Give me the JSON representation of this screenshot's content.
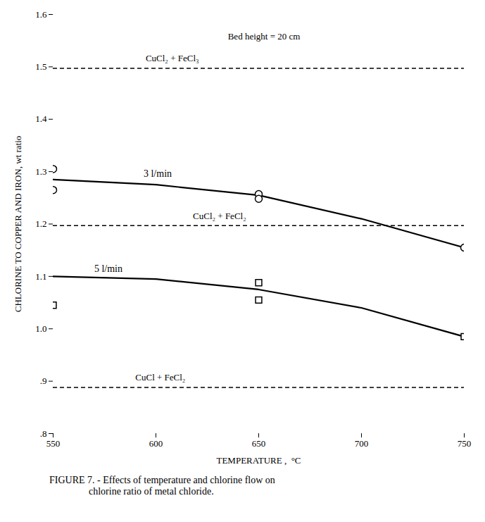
{
  "chart_data": {
    "type": "line",
    "xlabel": "TEMPERATURE ,  °C",
    "ylabel": "CHLORINE TO COPPER AND IRON, wt ratio",
    "xlim": [
      550,
      750
    ],
    "ylim": [
      0.8,
      1.6
    ],
    "xticks": [
      550,
      600,
      650,
      700,
      750
    ],
    "yticks": [
      {
        "value": 0.8,
        "label": ".8"
      },
      {
        "value": 0.9,
        "label": ".9"
      },
      {
        "value": 1.0,
        "label": "1.0"
      },
      1.1,
      1.2,
      1.3,
      1.4,
      1.5,
      1.6
    ],
    "series": [
      {
        "name": "3 l/min",
        "type": "line",
        "color": "black",
        "x": [
          550,
          600,
          650,
          700,
          750
        ],
        "values": [
          1.285,
          1.275,
          1.255,
          1.21,
          1.155
        ],
        "label_x": 594,
        "label_y": 1.296
      },
      {
        "name": "5 l/min",
        "type": "line",
        "color": "black",
        "x": [
          550,
          600,
          650,
          700,
          750
        ],
        "values": [
          1.1,
          1.095,
          1.075,
          1.04,
          0.985
        ],
        "label_x": 570,
        "label_y": 1.115
      },
      {
        "type": "scatter",
        "marker": "circle",
        "color": "black",
        "x": [
          550,
          550,
          650,
          650,
          750
        ],
        "values": [
          1.305,
          1.265,
          1.257,
          1.248,
          1.155
        ]
      },
      {
        "type": "scatter",
        "marker": "square",
        "color": "black",
        "x": [
          550,
          650,
          650,
          750
        ],
        "values": [
          1.045,
          1.088,
          1.055,
          0.985
        ]
      }
    ],
    "hlines": [
      {
        "y": 1.497,
        "label": "CuCl₂ + FeCl₃",
        "label_x": 595,
        "label_y": 1.51,
        "color": "black",
        "line_style": "dashed"
      },
      {
        "y": 1.197,
        "label": "CuCl₂ + FeCl₂",
        "label_x": 618,
        "label_y": 1.21,
        "color": "black",
        "line_style": "dashed"
      },
      {
        "y": 0.888,
        "label": "CuCl + FeCl₂",
        "label_x": 590,
        "label_y": 0.901,
        "color": "black",
        "line_style": "dashed"
      }
    ],
    "annotations": [
      {
        "text": "Bed height = 20 cm",
        "x": 635,
        "y": 1.565
      }
    ],
    "caption": "FIGURE 7. - Effects of temperature and chlorine flow on\n                chlorine ratio of metal chloride."
  }
}
